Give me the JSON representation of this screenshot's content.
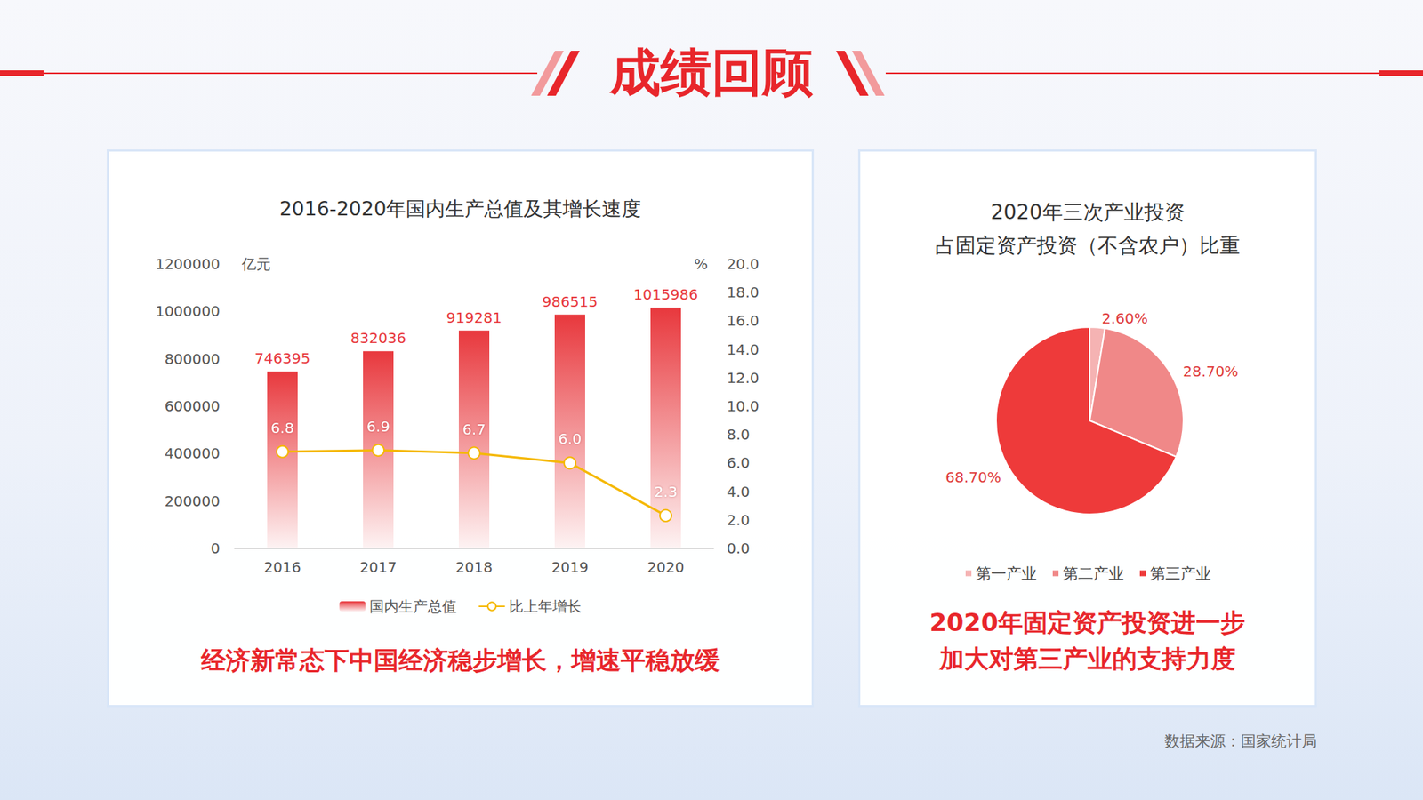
{
  "title": "成绩回顾",
  "source": "数据来源：国家统计局",
  "chart_data": [
    {
      "type": "bar",
      "title": "2016-2020年国内生产总值及其增长速度",
      "annotation": "经济新常态下中国经济稳步增长，增速平稳放缓",
      "categories": [
        "2016",
        "2017",
        "2018",
        "2019",
        "2020"
      ],
      "ylabel": "亿元",
      "y2label": "%",
      "ylim": [
        0,
        1200000
      ],
      "yticks": [
        0,
        200000,
        400000,
        600000,
        800000,
        1000000,
        1200000
      ],
      "y2lim": [
        0,
        20
      ],
      "y2ticks": [
        {
          "value": 0,
          "label": "0.0"
        },
        {
          "value": 2,
          "label": "2.0"
        },
        {
          "value": 4,
          "label": "4.0"
        },
        {
          "value": 6,
          "label": "6.0"
        },
        {
          "value": 8,
          "label": "8.0"
        },
        {
          "value": 10,
          "label": "10.0"
        },
        {
          "value": 12,
          "label": "12.0"
        },
        {
          "value": 14,
          "label": "14.0"
        },
        {
          "value": 16,
          "label": "16.0"
        },
        {
          "value": 18,
          "label": "18.0"
        },
        {
          "value": 20,
          "label": "20.0"
        }
      ],
      "grid": false,
      "legend": "bottom",
      "data_labels": true,
      "series": [
        {
          "name": "国内生产总值",
          "type": "bar",
          "color": "#e8383d",
          "values": [
            746395,
            832036,
            919281,
            986515,
            1015986
          ]
        },
        {
          "name": "比上年增长",
          "type": "line",
          "axis": "y2",
          "color": "#f5b800",
          "marker": "circle",
          "values": [
            6.8,
            6.9,
            6.7,
            6.0,
            2.3
          ],
          "value_labels": [
            "6.8",
            "6.9",
            "6.7",
            "6.0",
            "2.3"
          ]
        }
      ]
    },
    {
      "type": "pie",
      "title": "2020年三次产业投资",
      "subtitle": "占固定资产投资（不含农户）比重",
      "annotation": "2020年固定资产投资进一步加大对第三产业的支持力度",
      "categories": [
        "第一产业",
        "第二产业",
        "第三产业"
      ],
      "values": [
        2.6,
        28.7,
        68.7
      ],
      "value_labels": [
        "2.60%",
        "28.70%",
        "68.70%"
      ],
      "colors": [
        "#f5b3b3",
        "#f08888",
        "#ee3a3a"
      ],
      "legend": "bottom",
      "data_labels": true
    }
  ]
}
